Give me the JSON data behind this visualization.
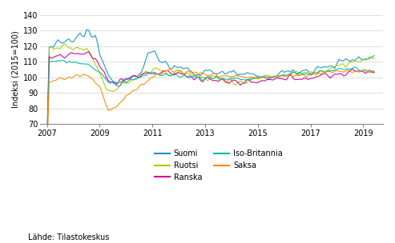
{
  "title": "",
  "ylabel": "Indeksi (2015=100)",
  "source_text": "Lähde: Tilastokeskus",
  "ylim": [
    70,
    140
  ],
  "yticks": [
    70,
    80,
    90,
    100,
    110,
    120,
    130,
    140
  ],
  "xlim_start": 2006.75,
  "xlim_end": 2019.75,
  "xtick_years": [
    2007,
    2009,
    2011,
    2013,
    2015,
    2017,
    2019
  ],
  "colors": {
    "Suomi": "#1693C8",
    "Ruotsi": "#AACC00",
    "Ranska": "#CC0099",
    "Iso-Britannia": "#00BBAA",
    "Saksa": "#FF8800"
  },
  "legend_ncol": 2,
  "linewidth": 0.75
}
